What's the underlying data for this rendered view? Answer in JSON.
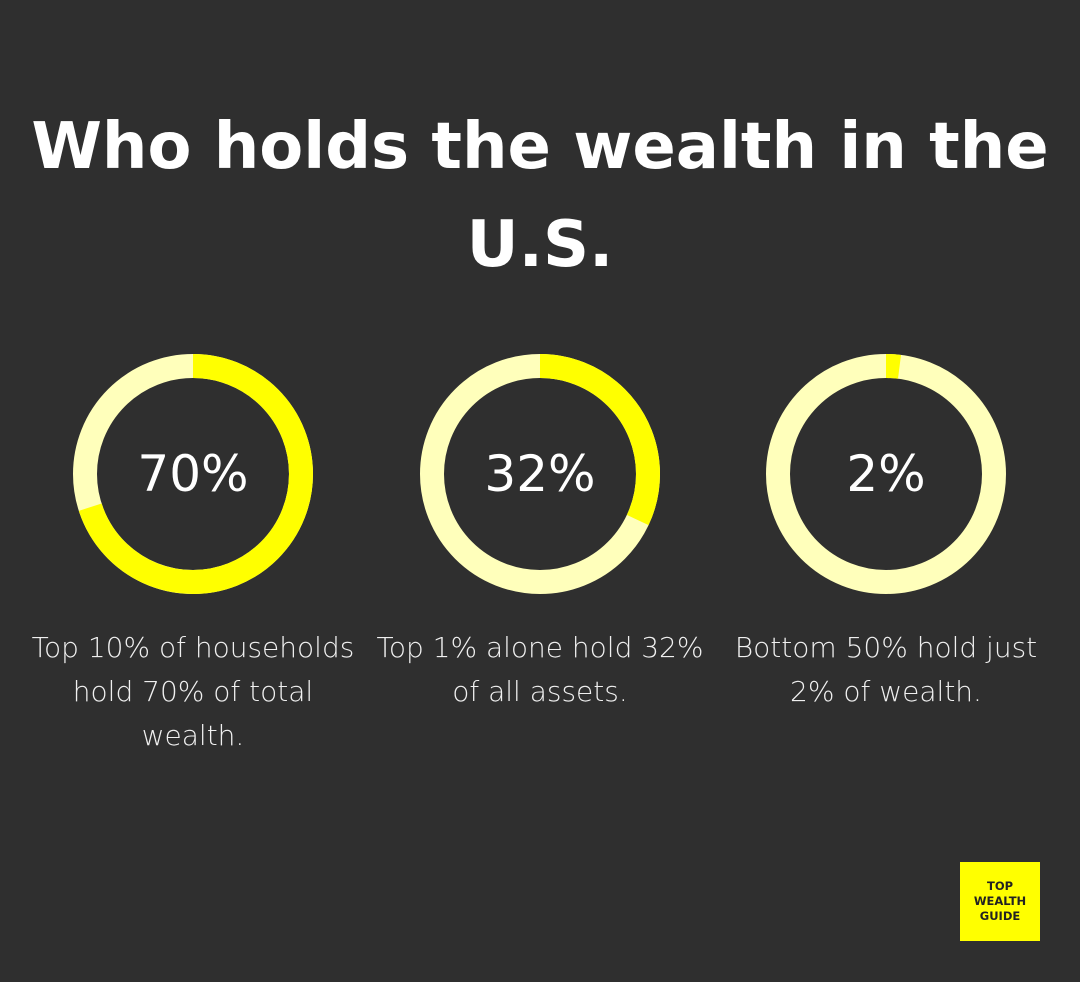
{
  "title": "Who holds the wealth in the U.S.",
  "chart_data": [
    {
      "type": "pie",
      "variant": "donut",
      "value": 70,
      "label": "70%",
      "caption": "Top 10% of households hold 70% of total wealth.",
      "colors": {
        "value": "#ffff00",
        "rest": "#ffffbb"
      }
    },
    {
      "type": "pie",
      "variant": "donut",
      "value": 32,
      "label": "32%",
      "caption": "Top 1% alone hold 32% of all assets.",
      "colors": {
        "value": "#ffff00",
        "rest": "#ffffbb"
      }
    },
    {
      "type": "pie",
      "variant": "donut",
      "value": 2,
      "label": "2%",
      "caption": "Bottom 50% hold just 2% of wealth.",
      "colors": {
        "value": "#ffff00",
        "rest": "#ffffbb"
      }
    }
  ],
  "logo": {
    "text": "TOP WEALTH GUIDE",
    "lines": [
      "TOP",
      "WEALTH",
      "GUIDE"
    ],
    "color": "#ffff00"
  },
  "background": "#2f2f2f"
}
